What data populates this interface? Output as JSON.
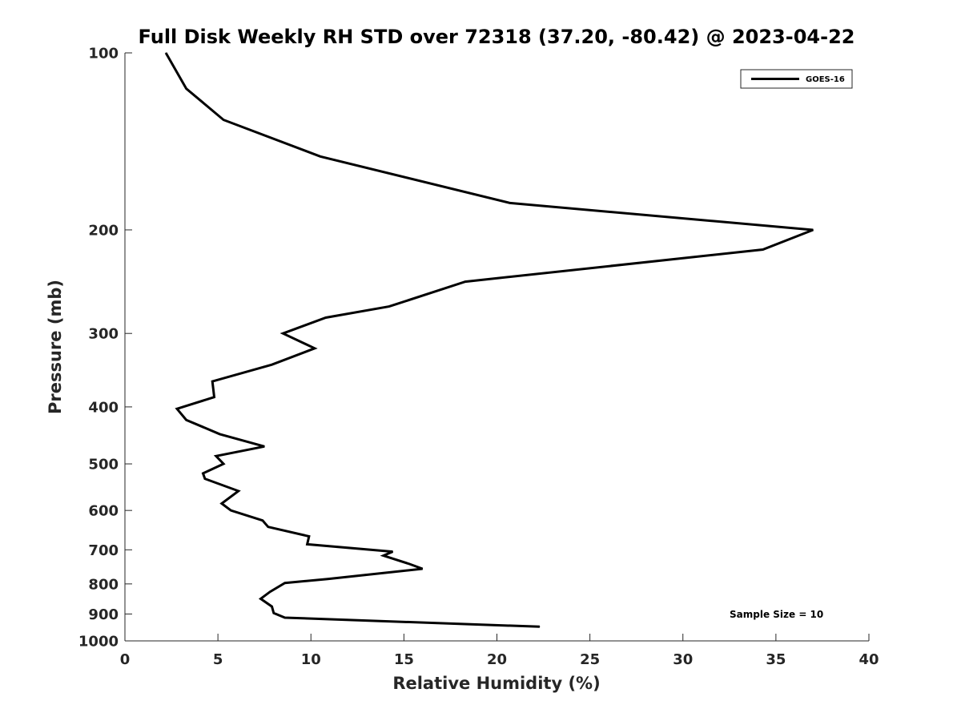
{
  "chart_data": {
    "type": "line",
    "title": "Full Disk Weekly RH STD over 72318 (37.20, -80.42) @ 2023-04-22",
    "xlabel": "Relative Humidity (%)",
    "ylabel": "Pressure (mb)",
    "xlim": [
      0,
      40
    ],
    "ylim": [
      100,
      1000
    ],
    "y_scale": "log",
    "y_reversed": true,
    "xticks": [
      0,
      5,
      10,
      15,
      20,
      25,
      30,
      35,
      40
    ],
    "yticks": [
      100,
      200,
      300,
      400,
      500,
      600,
      700,
      800,
      900,
      1000
    ],
    "grid": false,
    "legend_position": "top-right",
    "annotation": "Sample Size = 10",
    "series": [
      {
        "name": "GOES-16",
        "color": "#000000",
        "x": [
          2.2,
          3.3,
          5.3,
          10.5,
          20.7,
          37.0,
          34.3,
          18.3,
          14.2,
          10.8,
          8.5,
          10.2,
          7.9,
          4.7,
          4.8,
          2.8,
          3.3,
          5.1,
          7.5,
          4.9,
          5.3,
          4.2,
          4.3,
          6.1,
          5.2,
          5.7,
          7.4,
          7.7,
          9.9,
          9.8,
          14.4,
          13.9,
          15.3,
          16.0,
          10.9,
          8.6,
          7.8,
          7.3,
          7.9,
          8.0,
          8.6,
          22.3
        ],
        "y": [
          100,
          115,
          130,
          150,
          180,
          200,
          216,
          245,
          270,
          282,
          300,
          318,
          339,
          362,
          385,
          403,
          421,
          445,
          467,
          485,
          500,
          519,
          530,
          556,
          584,
          600,
          624,
          640,
          664,
          685,
          705,
          716,
          740,
          754,
          785,
          797,
          825,
          848,
          874,
          897,
          913,
          946
        ]
      }
    ]
  }
}
